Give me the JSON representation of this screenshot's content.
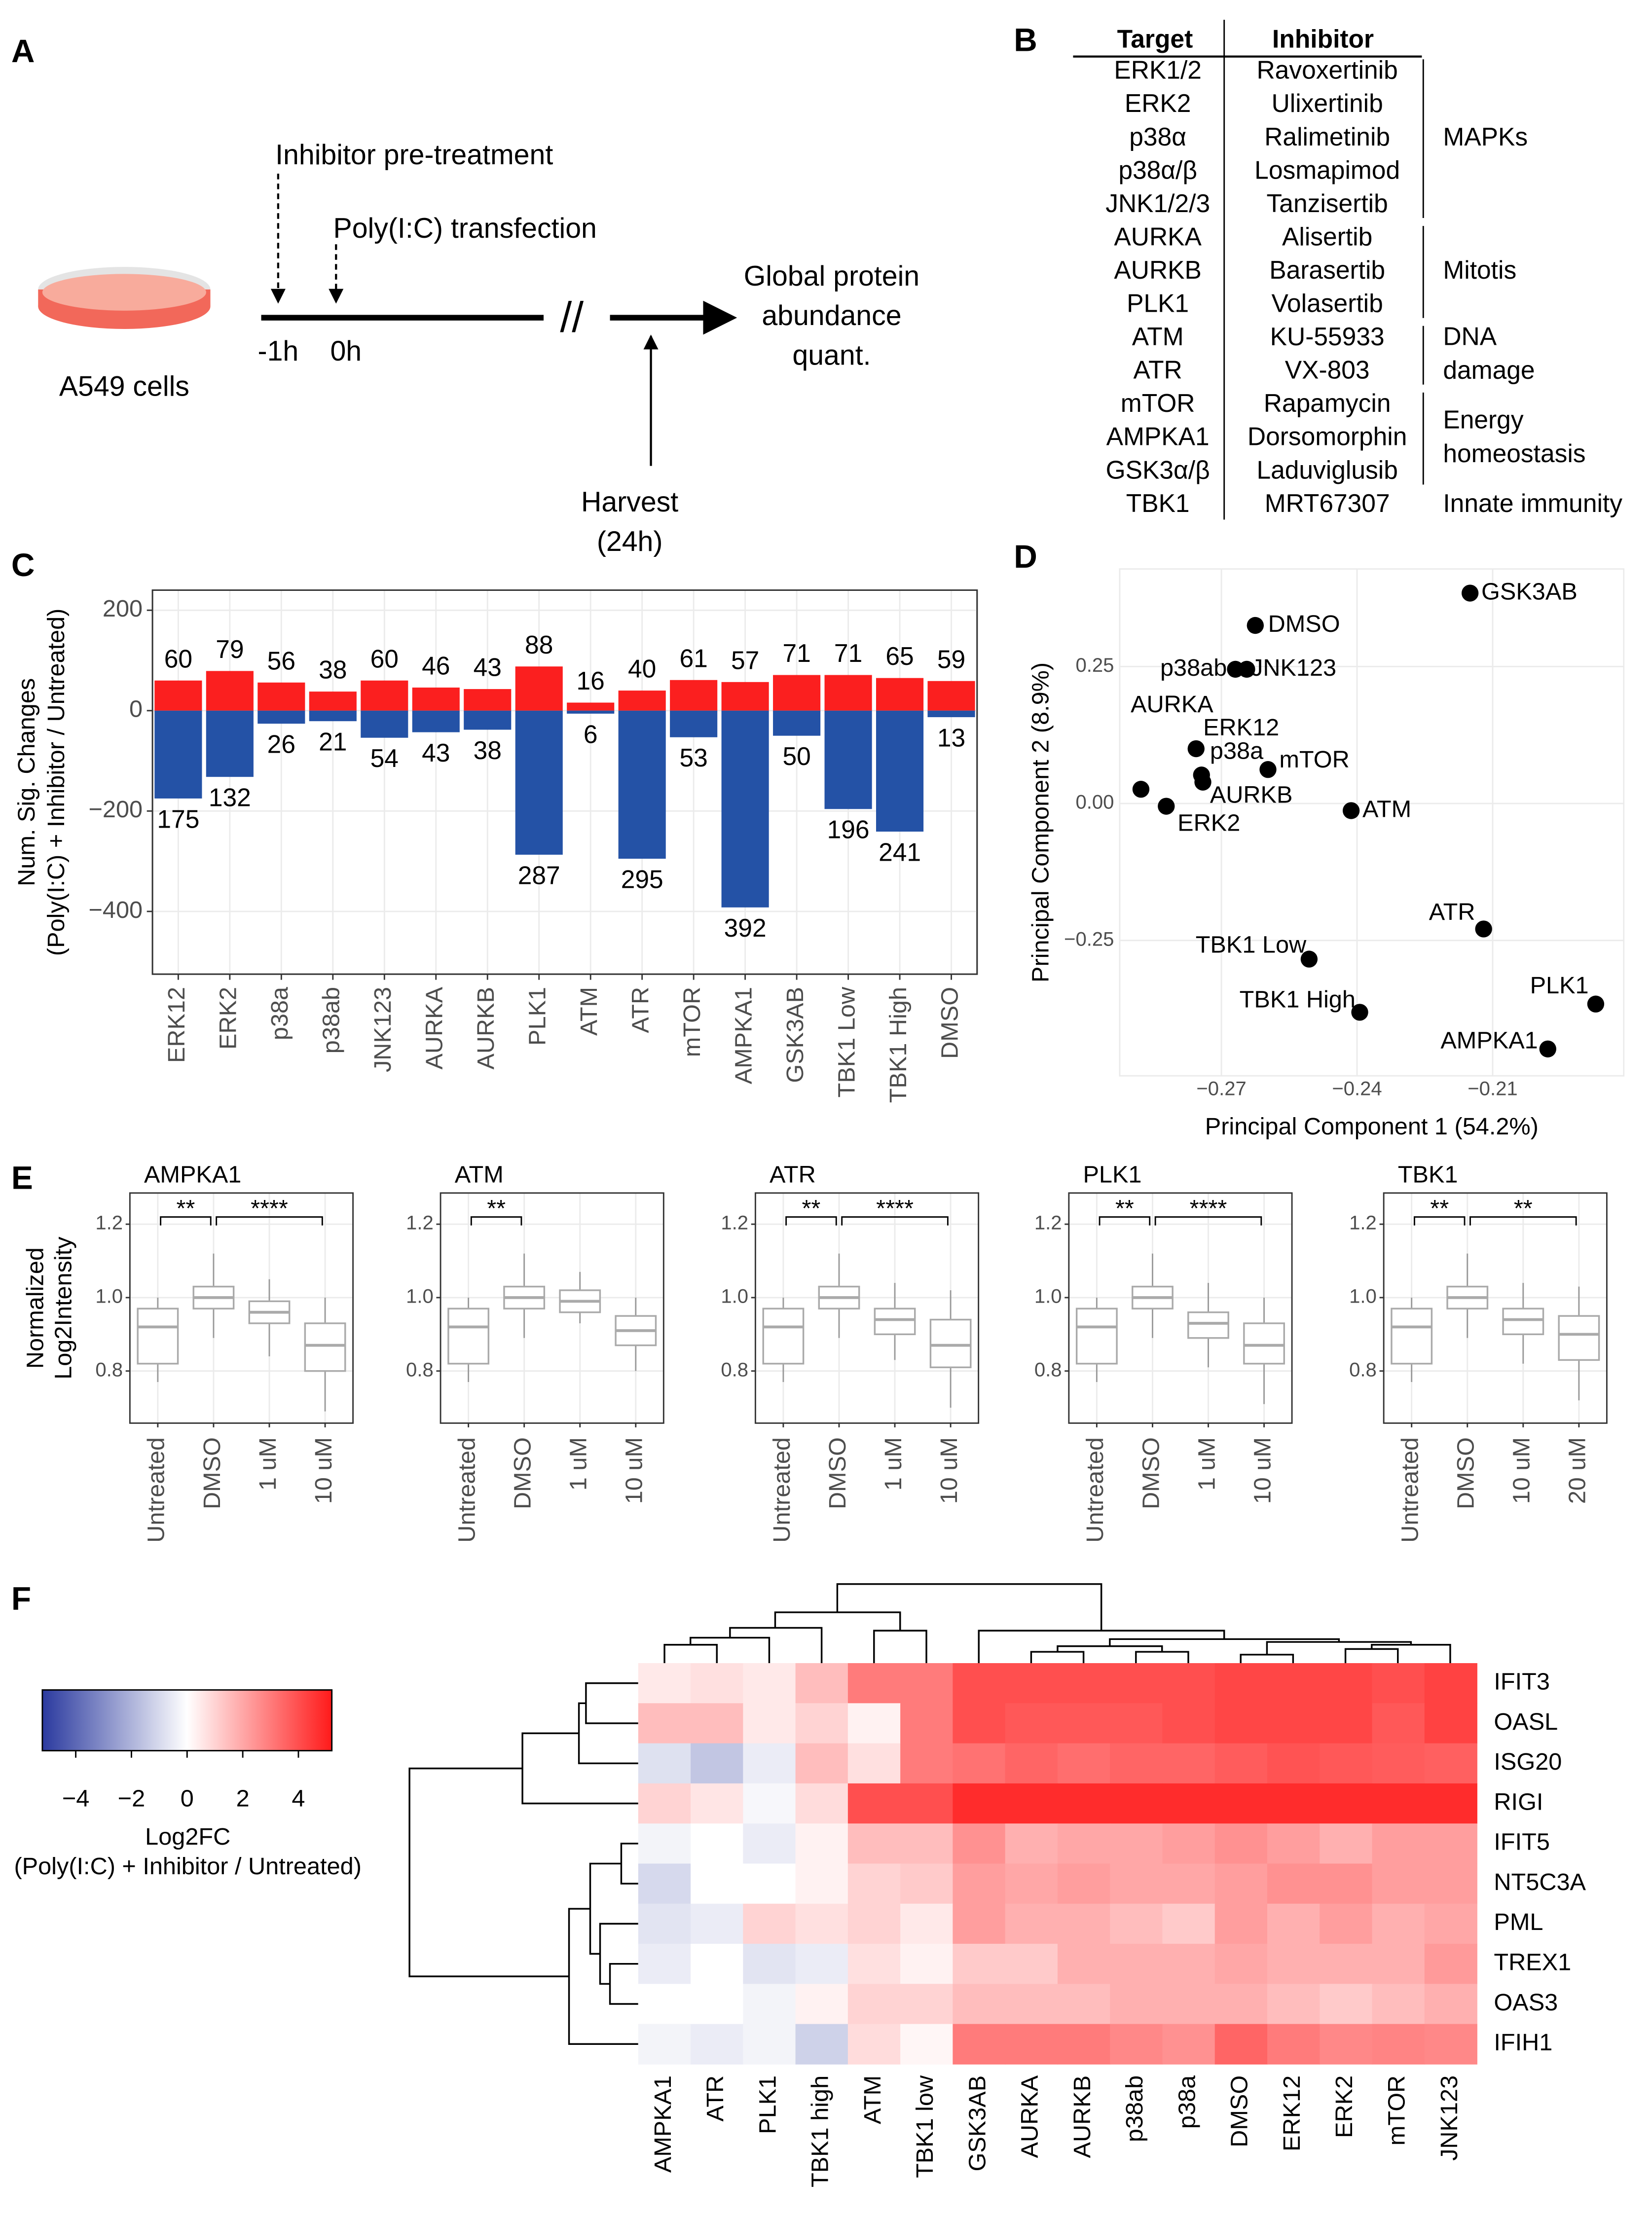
{
  "panel_labels": [
    "A",
    "B",
    "C",
    "D",
    "E",
    "F"
  ],
  "diagram": {
    "cells_label": "A549 cells",
    "pretreatment": "Inhibitor pre-treatment",
    "transfection": "Poly(I:C) transfection",
    "time_labels": [
      "-1h",
      "0h"
    ],
    "break": "//",
    "output": [
      "Global protein",
      "abundance",
      "quant."
    ],
    "harvest": [
      "Harvest",
      "(24h)"
    ]
  },
  "table": {
    "headers": [
      "Target",
      "Inhibitor"
    ],
    "rows": [
      [
        "ERK1/2",
        "Ravoxertinib"
      ],
      [
        "ERK2",
        "Ulixertinib"
      ],
      [
        "p38α",
        "Ralimetinib"
      ],
      [
        "p38α/β",
        "Losmapimod"
      ],
      [
        "JNK1/2/3",
        "Tanzisertib"
      ],
      [
        "AURKA",
        "Alisertib"
      ],
      [
        "AURKB",
        "Barasertib"
      ],
      [
        "PLK1",
        "Volasertib"
      ],
      [
        "ATM",
        "KU-55933"
      ],
      [
        "ATR",
        "VX-803"
      ],
      [
        "mTOR",
        "Rapamycin"
      ],
      [
        "AMPKA1",
        "Dorsomorphin"
      ],
      [
        "GSK3α/β",
        "Laduviglusib"
      ],
      [
        "TBK1",
        "MRT67307"
      ]
    ],
    "groups": [
      {
        "label": [
          "MAPKs"
        ],
        "first": 0,
        "last": 4
      },
      {
        "label": [
          "Mitotis"
        ],
        "first": 5,
        "last": 7
      },
      {
        "label": [
          "DNA",
          "damage"
        ],
        "first": 8,
        "last": 9
      },
      {
        "label": [
          "Energy",
          "homeostasis"
        ],
        "first": 10,
        "last": 12
      },
      {
        "label": [
          "Innate immunity"
        ],
        "first": 13,
        "last": 13
      }
    ]
  },
  "chart_data": [
    {
      "type": "bar",
      "ylabel": [
        "Num. Sig. Changes",
        "(Poly(I:C) + Inhibitor / Untreated)"
      ],
      "categories": [
        "ERK12",
        "ERK2",
        "p38a",
        "p38ab",
        "JNK123",
        "AURKA",
        "AURKB",
        "PLK1",
        "ATM",
        "ATR",
        "mTOR",
        "AMPKA1",
        "GSK3AB",
        "TBK1 Low",
        "TBK1 High",
        "DMSO"
      ],
      "series": [
        {
          "color": "#fb1f1f",
          "values": [
            60,
            79,
            56,
            38,
            60,
            46,
            43,
            88,
            16,
            40,
            61,
            57,
            71,
            71,
            65,
            59
          ]
        },
        {
          "color": "#2452a6",
          "values": [
            -175,
            -132,
            -26,
            -21,
            -54,
            -43,
            -38,
            -287,
            -6,
            -295,
            -53,
            -392,
            -50,
            -196,
            -241,
            -13
          ],
          "value_labels": [
            "175",
            "132",
            "26",
            "21",
            "54",
            "43",
            "38",
            "287",
            "6",
            "295",
            "53",
            "392",
            "50",
            "196",
            "241",
            "13"
          ]
        }
      ],
      "ylim": [
        -525,
        240
      ],
      "yticks": [
        {
          "value": -400,
          "label": "−400"
        },
        {
          "value": -200,
          "label": "−200"
        },
        0,
        200
      ],
      "grid": true
    },
    {
      "type": "scatter",
      "xlabel": "Principal Component 1 (54.2%)",
      "ylabel": "Principal Component 2 (8.9%)",
      "point_labels": [
        "GSK3AB",
        "DMSO",
        "p38ab",
        "JNK123",
        "ERK12",
        "p38a",
        "AURKB",
        "mTOR",
        "AURKA",
        "ERK2",
        "ATM",
        "ATR",
        "TBK1 Low",
        "TBK1 High",
        "PLK1",
        "AMPKA1"
      ],
      "x": [
        -0.215,
        -0.2625,
        -0.2669,
        -0.2644,
        -0.2756,
        -0.2744,
        -0.2741,
        -0.2597,
        -0.2878,
        -0.2822,
        -0.2413,
        -0.212,
        -0.2506,
        -0.2394,
        -0.1872,
        -0.1978
      ],
      "values": [
        0.384,
        0.325,
        0.245,
        0.245,
        0.1,
        0.052,
        0.039,
        0.062,
        0.026,
        -0.005,
        -0.013,
        -0.229,
        -0.284,
        -0.381,
        -0.366,
        -0.448
      ],
      "color": "#000000",
      "xlim": [
        -0.2925,
        -0.181
      ],
      "ylim": [
        -0.497,
        0.428
      ],
      "xticks": [
        {
          "value": -0.27,
          "label": "−0.27"
        },
        {
          "value": -0.24,
          "label": "−0.24"
        },
        {
          "value": -0.21,
          "label": "−0.21"
        }
      ],
      "yticks": [
        {
          "value": -0.25,
          "label": "−0.25"
        },
        {
          "value": 0,
          "label": "0.00"
        },
        0.25
      ],
      "grid": true
    },
    {
      "type": "box",
      "title": "AMPKA1",
      "ylabel": [
        "Normalized",
        "Log2Intensity"
      ],
      "categories": [
        "Untreated",
        "DMSO",
        "1 uM",
        "10 uM"
      ],
      "boxes": [
        {
          "min": 0.77,
          "q1": 0.82,
          "median": 0.92,
          "q3": 0.97,
          "max": 1.0
        },
        {
          "min": 0.89,
          "q1": 0.97,
          "median": 1.0,
          "q3": 1.03,
          "max": 1.12
        },
        {
          "min": 0.84,
          "q1": 0.93,
          "median": 0.96,
          "q3": 0.99,
          "max": 1.05
        },
        {
          "min": 0.69,
          "q1": 0.8,
          "median": 0.87,
          "q3": 0.93,
          "max": 1.0
        }
      ],
      "significance": [
        {
          "from": 0,
          "to": 1,
          "label": "**"
        },
        {
          "from": 1,
          "to": 3,
          "label": "****"
        }
      ],
      "ylim": [
        0.658,
        1.285
      ],
      "yticks": [
        0.8,
        {
          "value": 1,
          "label": "1.0"
        },
        1.2
      ],
      "grid": true
    },
    {
      "type": "box",
      "title": "ATM",
      "categories": [
        "Untreated",
        "DMSO",
        "1 uM",
        "10 uM"
      ],
      "boxes": [
        {
          "min": 0.77,
          "q1": 0.82,
          "median": 0.92,
          "q3": 0.97,
          "max": 1.0
        },
        {
          "min": 0.89,
          "q1": 0.97,
          "median": 1.0,
          "q3": 1.03,
          "max": 1.12
        },
        {
          "min": 0.93,
          "q1": 0.96,
          "median": 0.99,
          "q3": 1.02,
          "max": 1.07
        },
        {
          "min": 0.8,
          "q1": 0.87,
          "median": 0.91,
          "q3": 0.95,
          "max": 1.0
        }
      ],
      "significance": [
        {
          "from": 0,
          "to": 1,
          "label": "**"
        }
      ],
      "ylim": [
        0.658,
        1.285
      ],
      "yticks": [
        0.8,
        {
          "value": 1,
          "label": "1.0"
        },
        1.2
      ],
      "grid": true
    },
    {
      "type": "box",
      "title": "ATR",
      "categories": [
        "Untreated",
        "DMSO",
        "1 uM",
        "10 uM"
      ],
      "boxes": [
        {
          "min": 0.77,
          "q1": 0.82,
          "median": 0.92,
          "q3": 0.97,
          "max": 1.0
        },
        {
          "min": 0.89,
          "q1": 0.97,
          "median": 1.0,
          "q3": 1.03,
          "max": 1.12
        },
        {
          "min": 0.83,
          "q1": 0.9,
          "median": 0.94,
          "q3": 0.97,
          "max": 1.04
        },
        {
          "min": 0.7,
          "q1": 0.81,
          "median": 0.87,
          "q3": 0.94,
          "max": 1.02
        }
      ],
      "significance": [
        {
          "from": 0,
          "to": 1,
          "label": "**"
        },
        {
          "from": 1,
          "to": 3,
          "label": "****"
        }
      ],
      "ylim": [
        0.658,
        1.285
      ],
      "yticks": [
        0.8,
        {
          "value": 1,
          "label": "1.0"
        },
        1.2
      ],
      "grid": true
    },
    {
      "type": "box",
      "title": "PLK1",
      "categories": [
        "Untreated",
        "DMSO",
        "1 uM",
        "10 uM"
      ],
      "boxes": [
        {
          "min": 0.77,
          "q1": 0.82,
          "median": 0.92,
          "q3": 0.97,
          "max": 1.0
        },
        {
          "min": 0.89,
          "q1": 0.97,
          "median": 1.0,
          "q3": 1.03,
          "max": 1.12
        },
        {
          "min": 0.81,
          "q1": 0.89,
          "median": 0.93,
          "q3": 0.96,
          "max": 1.04
        },
        {
          "min": 0.71,
          "q1": 0.82,
          "median": 0.87,
          "q3": 0.93,
          "max": 1.0
        }
      ],
      "significance": [
        {
          "from": 0,
          "to": 1,
          "label": "**"
        },
        {
          "from": 1,
          "to": 3,
          "label": "****"
        }
      ],
      "ylim": [
        0.658,
        1.285
      ],
      "yticks": [
        0.8,
        {
          "value": 1,
          "label": "1.0"
        },
        1.2
      ],
      "grid": true
    },
    {
      "type": "box",
      "title": "TBK1",
      "categories": [
        "Untreated",
        "DMSO",
        "10 uM",
        "20 uM"
      ],
      "boxes": [
        {
          "min": 0.77,
          "q1": 0.82,
          "median": 0.92,
          "q3": 0.97,
          "max": 1.0
        },
        {
          "min": 0.89,
          "q1": 0.97,
          "median": 1.0,
          "q3": 1.03,
          "max": 1.12
        },
        {
          "min": 0.82,
          "q1": 0.9,
          "median": 0.94,
          "q3": 0.97,
          "max": 1.04
        },
        {
          "min": 0.72,
          "q1": 0.83,
          "median": 0.9,
          "q3": 0.95,
          "max": 1.03
        }
      ],
      "significance": [
        {
          "from": 0,
          "to": 1,
          "label": "**"
        },
        {
          "from": 1,
          "to": 3,
          "label": "**"
        }
      ],
      "ylim": [
        0.658,
        1.285
      ],
      "yticks": [
        0.8,
        {
          "value": 1,
          "label": "1.0"
        },
        1.2
      ],
      "grid": true
    },
    {
      "type": "heatmap",
      "rows": [
        "IFIT3",
        "OASL",
        "ISG20",
        "RIGI",
        "IFIT5",
        "NT5C3A",
        "PML",
        "TREX1",
        "OAS3",
        "IFIH1"
      ],
      "columns": [
        "AMPKA1",
        "ATR",
        "PLK1",
        "TBK1 high",
        "ATM",
        "TBK1 low",
        "GSK3AB",
        "AURKA",
        "AURKB",
        "p38ab",
        "p38a",
        "DMSO",
        "ERK12",
        "ERK2",
        "mTOR",
        "JNK123"
      ],
      "values": [
        [
          0.5,
          0.7,
          0.5,
          1.5,
          3,
          3,
          4,
          4,
          4,
          4,
          4,
          4.2,
          4.2,
          4.2,
          4,
          4.3
        ],
        [
          1.5,
          1.5,
          0.5,
          1,
          0.3,
          3,
          4,
          3.8,
          3.8,
          3.8,
          4,
          4.2,
          4.2,
          4.2,
          3.8,
          4.3
        ],
        [
          -0.8,
          -1.5,
          -0.5,
          1.5,
          0.7,
          3,
          3.2,
          3.5,
          3.3,
          3.5,
          3.5,
          3.7,
          3.9,
          3.8,
          3.7,
          3.6
        ],
        [
          1,
          0.6,
          -0.2,
          0.8,
          4,
          4,
          4.8,
          4.8,
          4.8,
          4.8,
          4.8,
          4.8,
          4.8,
          4.8,
          4.8,
          4.8
        ],
        [
          -0.3,
          0,
          -0.5,
          0.3,
          1.5,
          1.5,
          2.5,
          1.8,
          2,
          2,
          2.2,
          2.5,
          2.2,
          1.8,
          2.2,
          2.2
        ],
        [
          -1,
          0,
          0,
          0.3,
          1,
          1.2,
          2.2,
          2,
          2.2,
          2,
          2,
          2.2,
          2.5,
          2.5,
          2.2,
          2.2
        ],
        [
          -0.7,
          -0.5,
          1,
          0.7,
          1,
          0.5,
          2.2,
          1.8,
          1.8,
          1.5,
          1.2,
          2.2,
          1.8,
          2.2,
          1.8,
          2
        ],
        [
          -0.5,
          0,
          -0.7,
          -0.5,
          0.7,
          0.3,
          1.2,
          1.2,
          1.8,
          1.8,
          1.8,
          2,
          1.8,
          1.8,
          1.8,
          2.3
        ],
        [
          0,
          0,
          -0.3,
          0.3,
          1,
          1,
          1.5,
          1.5,
          1.5,
          1.8,
          1.8,
          1.8,
          1.5,
          1.2,
          1.5,
          1.8
        ],
        [
          -0.3,
          -0.5,
          -0.3,
          -1.2,
          0.8,
          0.2,
          3,
          3,
          3,
          2.7,
          2.5,
          3.5,
          3,
          2.7,
          2.8,
          2.7
        ]
      ],
      "colorbar": {
        "title": [
          "Log2FC",
          "(Poly(I:C) + Inhibitor / Untreated)"
        ],
        "lim": [
          -5.2,
          5.2
        ],
        "ticks": [
          {
            "value": -4,
            "label": "−4"
          },
          {
            "value": -2,
            "label": "−2"
          },
          0,
          2,
          4
        ],
        "colors": [
          "#2b3a9f",
          "#ffffff",
          "#ff1a1a"
        ]
      }
    }
  ]
}
